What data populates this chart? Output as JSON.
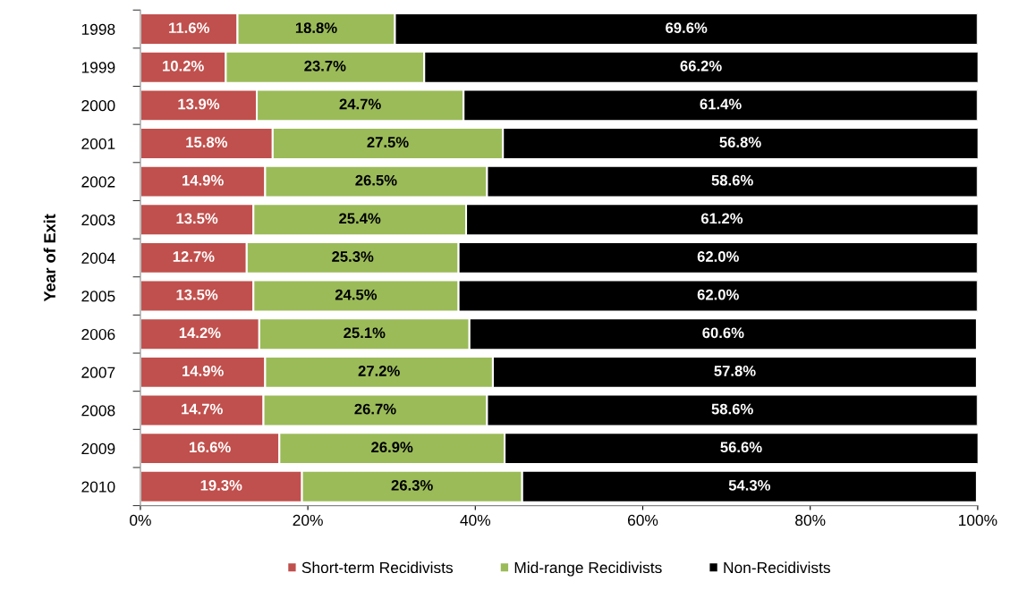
{
  "chart_data": {
    "type": "bar",
    "orientation": "horizontal",
    "stacked": true,
    "ylabel": "Year of Exit",
    "categories": [
      "1998",
      "1999",
      "2000",
      "2001",
      "2002",
      "2003",
      "2004",
      "2005",
      "2006",
      "2007",
      "2008",
      "2009",
      "2010"
    ],
    "series": [
      {
        "name": "Short-term Recidivists",
        "color": "#c0504d",
        "values": [
          11.6,
          10.2,
          13.9,
          15.8,
          14.9,
          13.5,
          12.7,
          13.5,
          14.2,
          14.9,
          14.7,
          16.6,
          19.3
        ],
        "value_labels": [
          "11.6%",
          "10.2%",
          "13.9%",
          "15.8%",
          "14.9%",
          "13.5%",
          "12.7%",
          "13.5%",
          "14.2%",
          "14.9%",
          "14.7%",
          "16.6%",
          "19.3%"
        ]
      },
      {
        "name": "Mid-range Recidivists",
        "color": "#9bbb59",
        "values": [
          18.8,
          23.7,
          24.7,
          27.5,
          26.5,
          25.4,
          25.3,
          24.5,
          25.1,
          27.2,
          26.7,
          26.9,
          26.3
        ],
        "value_labels": [
          "18.8%",
          "23.7%",
          "24.7%",
          "27.5%",
          "26.5%",
          "25.4%",
          "25.3%",
          "24.5%",
          "25.1%",
          "27.2%",
          "26.7%",
          "26.9%",
          "26.3%"
        ]
      },
      {
        "name": "Non-Recidivists",
        "color": "#000000",
        "values": [
          69.6,
          66.2,
          61.4,
          56.8,
          58.6,
          61.2,
          62.0,
          62.0,
          60.6,
          57.8,
          58.6,
          56.6,
          54.3
        ],
        "value_labels": [
          "69.6%",
          "66.2%",
          "61.4%",
          "56.8%",
          "58.6%",
          "61.2%",
          "62.0%",
          "62.0%",
          "60.6%",
          "57.8%",
          "58.6%",
          "56.6%",
          "54.3%"
        ]
      }
    ],
    "xlim": [
      0,
      100
    ],
    "xticks": [
      {
        "value": 0,
        "label": "0%"
      },
      {
        "value": 20,
        "label": "20%"
      },
      {
        "value": 40,
        "label": "40%"
      },
      {
        "value": 60,
        "label": "60%"
      },
      {
        "value": 80,
        "label": "80%"
      },
      {
        "value": 100,
        "label": "100%"
      }
    ],
    "grid": false,
    "legend": "bottom"
  }
}
